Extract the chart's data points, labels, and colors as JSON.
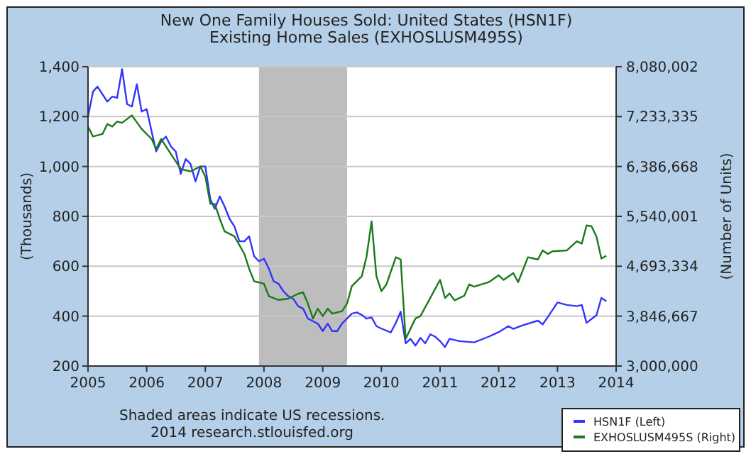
{
  "chart_data": {
    "type": "line",
    "title": "New One Family Houses Sold: United States (HSN1F)",
    "subtitle": "Existing Home Sales (EXHOSLUSM495S)",
    "ylabel": "(Thousands)",
    "y2label": "(Number of Units)",
    "xlim": [
      "2005-01",
      "2014-01"
    ],
    "xticks": [
      "2005",
      "2006",
      "2007",
      "2008",
      "2009",
      "2010",
      "2011",
      "2012",
      "2013",
      "2014"
    ],
    "ylim": [
      200,
      1400
    ],
    "yticks": [
      {
        "value": 200,
        "label": "200"
      },
      {
        "value": 400,
        "label": "400"
      },
      {
        "value": 600,
        "label": "600"
      },
      {
        "value": 800,
        "label": "800"
      },
      {
        "value": 1000,
        "label": "1,000"
      },
      {
        "value": 1200,
        "label": "1,200"
      },
      {
        "value": 1400,
        "label": "1,400"
      }
    ],
    "y2lim": [
      3000000,
      8080002
    ],
    "y2ticks": [
      {
        "value": 3000000,
        "label": "3,000,000"
      },
      {
        "value": 3846667,
        "label": "3,846,667"
      },
      {
        "value": 4693334,
        "label": "4,693,334"
      },
      {
        "value": 5540001,
        "label": "5,540,001"
      },
      {
        "value": 6386668,
        "label": "6,386,668"
      },
      {
        "value": 7233335,
        "label": "7,233,335"
      },
      {
        "value": 8080002,
        "label": "8,080,002"
      }
    ],
    "grid": "y",
    "legend": "bottom right",
    "line_style": "solid",
    "marker": "none",
    "bands": [
      {
        "axis": "x",
        "from": "2007-12",
        "to": "2009-06",
        "color": "#bdbdbd"
      }
    ],
    "annotations": [
      "Shaded areas indicate US recessions.",
      "2014 research.stlouisfed.org"
    ],
    "series": [
      {
        "name": "HSN1F (Left)",
        "color": "#3333ff",
        "x": [
          "2005-01",
          "2005-02",
          "2005-03",
          "2005-05",
          "2005-06",
          "2005-07",
          "2005-08",
          "2005-09",
          "2005-10",
          "2005-11",
          "2005-12",
          "2006-01",
          "2006-02",
          "2006-03",
          "2006-04",
          "2006-05",
          "2006-06",
          "2006-07",
          "2006-08",
          "2006-09",
          "2006-10",
          "2006-11",
          "2006-12",
          "2007-01",
          "2007-02",
          "2007-03",
          "2007-04",
          "2007-05",
          "2007-06",
          "2007-07",
          "2007-08",
          "2007-09",
          "2007-10",
          "2007-11",
          "2007-12",
          "2008-01",
          "2008-02",
          "2008-03",
          "2008-04",
          "2008-05",
          "2008-06",
          "2008-07",
          "2008-08",
          "2008-09",
          "2008-10",
          "2008-11",
          "2008-12",
          "2009-01",
          "2009-02",
          "2009-03",
          "2009-04",
          "2009-05",
          "2009-06",
          "2009-07",
          "2009-08",
          "2009-09",
          "2009-10",
          "2009-11",
          "2009-12",
          "2010-01",
          "2010-03",
          "2010-04",
          "2010-05",
          "2010-06",
          "2010-07",
          "2010-08",
          "2010-09",
          "2010-10",
          "2010-11",
          "2010-12",
          "2011-01",
          "2011-02",
          "2011-03",
          "2011-05",
          "2011-08",
          "2011-11",
          "2012-01",
          "2012-03",
          "2012-04",
          "2012-06",
          "2012-09",
          "2012-10",
          "2012-11",
          "2013-01",
          "2013-03",
          "2013-05",
          "2013-06",
          "2013-07",
          "2013-09",
          "2013-10",
          "2013-11"
        ],
        "values": [
          1200,
          1300,
          1320,
          1260,
          1280,
          1275,
          1390,
          1250,
          1240,
          1330,
          1220,
          1230,
          1140,
          1060,
          1100,
          1120,
          1080,
          1060,
          970,
          1030,
          1010,
          940,
          1000,
          1000,
          870,
          830,
          880,
          840,
          790,
          760,
          700,
          700,
          720,
          640,
          620,
          630,
          590,
          540,
          530,
          500,
          480,
          470,
          440,
          430,
          390,
          380,
          370,
          340,
          370,
          340,
          340,
          370,
          390,
          410,
          415,
          405,
          390,
          395,
          360,
          350,
          335,
          373,
          418,
          291,
          309,
          282,
          313,
          291,
          327,
          318,
          300,
          276,
          309,
          300,
          295,
          318,
          336,
          360,
          349,
          364,
          382,
          367,
          396,
          455,
          445,
          440,
          445,
          373,
          404,
          473,
          460
        ]
      },
      {
        "name": "EXHOSLUSM495S (Right)",
        "color": "#1a7a1a",
        "axis": "y2",
        "x": [
          "2005-01",
          "2005-02",
          "2005-04",
          "2005-05",
          "2005-06",
          "2005-07",
          "2005-08",
          "2005-10",
          "2005-12",
          "2006-02",
          "2006-03",
          "2006-04",
          "2006-06",
          "2006-08",
          "2006-10",
          "2006-12",
          "2007-01",
          "2007-02",
          "2007-03",
          "2007-04",
          "2007-05",
          "2007-07",
          "2007-09",
          "2007-10",
          "2007-11",
          "2008-01",
          "2008-02",
          "2008-04",
          "2008-06",
          "2008-08",
          "2008-09",
          "2008-10",
          "2008-11",
          "2008-12",
          "2009-01",
          "2009-02",
          "2009-03",
          "2009-05",
          "2009-06",
          "2009-07",
          "2009-09",
          "2009-10",
          "2009-11",
          "2009-12",
          "2010-01",
          "2010-02",
          "2010-04",
          "2010-05",
          "2010-06",
          "2010-08",
          "2010-09",
          "2011-01",
          "2011-02",
          "2011-03",
          "2011-04",
          "2011-06",
          "2011-07",
          "2011-08",
          "2011-11",
          "2012-01",
          "2012-02",
          "2012-04",
          "2012-05",
          "2012-07",
          "2012-09",
          "2012-10",
          "2012-11",
          "2012-12",
          "2013-03",
          "2013-05",
          "2013-06",
          "2013-07",
          "2013-08",
          "2013-09",
          "2013-10",
          "2013-11"
        ],
        "values": [
          7064000,
          6895000,
          6937000,
          7106000,
          7064000,
          7149000,
          7127000,
          7254000,
          7022000,
          6852000,
          6683000,
          6852000,
          6598000,
          6344000,
          6302000,
          6387000,
          6217000,
          5752000,
          5752000,
          5498000,
          5286000,
          5201000,
          4905000,
          4651000,
          4439000,
          4397000,
          4185000,
          4122000,
          4143000,
          4228000,
          4249000,
          4058000,
          3804000,
          3974000,
          3847000,
          3974000,
          3889000,
          3931000,
          4058000,
          4355000,
          4524000,
          4863000,
          5455000,
          4524000,
          4270000,
          4385000,
          4847000,
          4809000,
          3462000,
          3808000,
          3847000,
          4462000,
          4155000,
          4232000,
          4116000,
          4193000,
          4385000,
          4347000,
          4424000,
          4540000,
          4462000,
          4578000,
          4424000,
          4847000,
          4809000,
          4963000,
          4901000,
          4947000,
          4963000,
          5117000,
          5078000,
          5386000,
          5371000,
          5194000,
          4824000,
          4870000
        ]
      }
    ]
  }
}
